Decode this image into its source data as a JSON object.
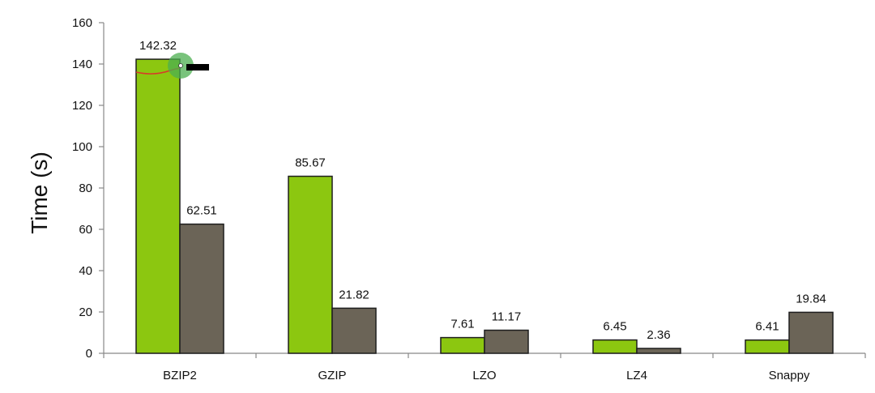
{
  "chart_data": {
    "type": "bar",
    "categories": [
      "BZIP2",
      "GZIP",
      "LZO",
      "LZ4",
      "Snappy"
    ],
    "series": [
      {
        "values": [
          142.32,
          85.67,
          7.61,
          6.45,
          6.41
        ]
      },
      {
        "values": [
          62.51,
          21.82,
          11.17,
          2.36,
          19.84
        ]
      }
    ],
    "data_labels": [
      [
        "142.32",
        "85.67",
        "7.61",
        "6.45",
        "6.41"
      ],
      [
        "62.51",
        "21.82",
        "11.17",
        "2.36",
        "19.84"
      ]
    ],
    "ylabel": "Time (s)",
    "ylim": [
      0,
      160
    ],
    "yticks": [
      0,
      20,
      40,
      60,
      80,
      100,
      120,
      140,
      160
    ],
    "ytick_labels": [
      "0",
      "20",
      "40",
      "60",
      "80",
      "100",
      "120",
      "140",
      "160"
    ],
    "grid": false,
    "legend": "none"
  },
  "colors": {
    "series": [
      "#8cc710",
      "#6b6457"
    ],
    "bar_stroke": "#1e1e1e",
    "axis": "#888888",
    "pointer_ring": "#4caf50",
    "pointer_stroke": "#d83a2a"
  },
  "cursor": {
    "icon": "pointer-highlight-icon",
    "marker_icon": "cursor-bar-icon"
  }
}
